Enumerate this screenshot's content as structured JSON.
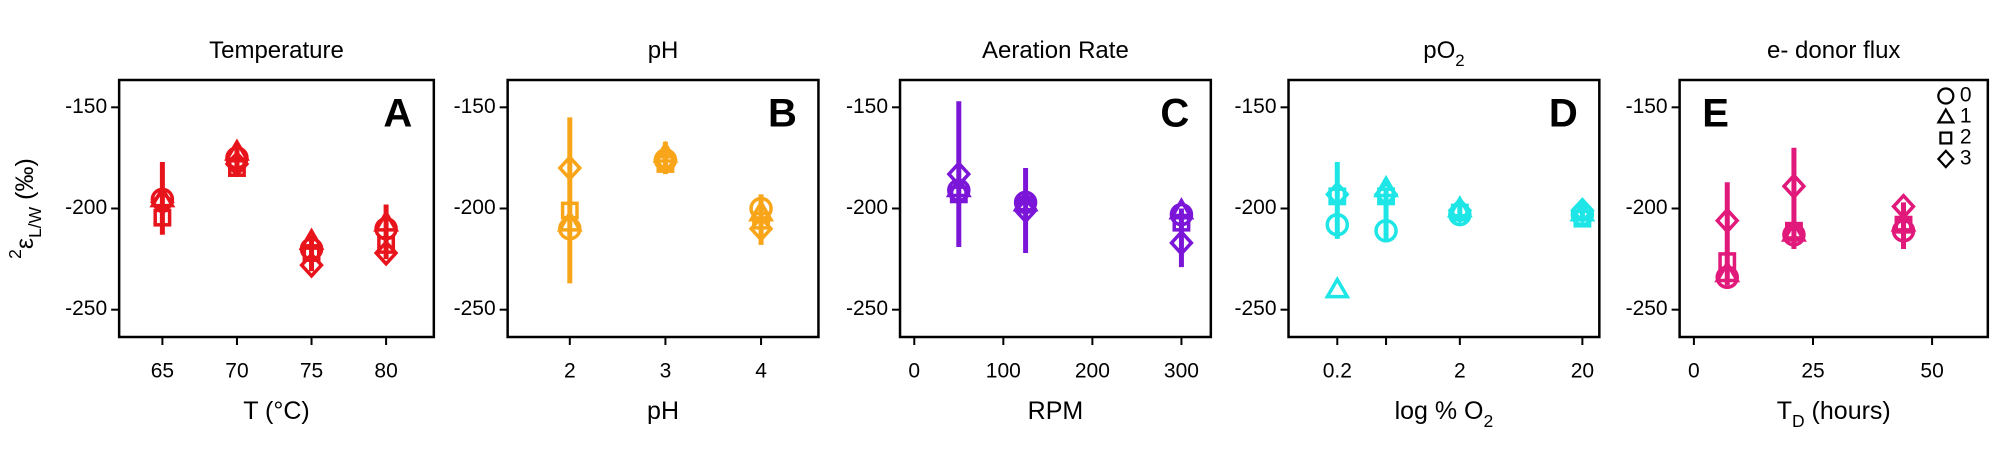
{
  "chart_data": [
    {
      "type": "scatter",
      "title": [
        {
          "t": "Temperature"
        }
      ],
      "xlabel": [
        {
          "t": "T (°C)"
        }
      ],
      "letter": "A",
      "color": "#e8141c",
      "ylabel": [
        {
          "t": "2",
          "s": "sup"
        },
        {
          "t": "ε"
        },
        {
          "t": "L/W",
          "s": "sub"
        },
        {
          "t": " (‰)"
        }
      ],
      "xlim": [
        62.1,
        83.2
      ],
      "xticks": [
        65,
        70,
        75,
        80
      ],
      "ylim": [
        -263.5,
        -136.5
      ],
      "yticks": [
        -250,
        -200,
        -150
      ],
      "x": [
        65,
        70,
        75,
        80
      ],
      "range_low": [
        -213,
        -183,
        -231,
        -225
      ],
      "range_high": [
        -177,
        -168,
        -213,
        -198
      ],
      "series": [
        {
          "name": "0",
          "marker": "circle",
          "values": [
            -195.5,
            -175,
            -220,
            -210
          ]
        },
        {
          "name": "1",
          "marker": "triangle",
          "values": [
            -195,
            -172,
            -216,
            -207
          ]
        },
        {
          "name": "2",
          "marker": "square",
          "values": [
            -204.5,
            -180,
            -222,
            -218
          ]
        },
        {
          "name": "3",
          "marker": "diamond",
          "values": [
            -197,
            -178,
            -228,
            -222
          ]
        }
      ]
    },
    {
      "type": "scatter",
      "title": [
        {
          "t": "pH"
        }
      ],
      "xlabel": [
        {
          "t": "pH"
        }
      ],
      "letter": "B",
      "color": "#f9a51a",
      "xlim": [
        1.35,
        4.6
      ],
      "xticks": [
        2,
        3,
        4
      ],
      "ylim": [
        -263.5,
        -136.5
      ],
      "yticks": [
        -250,
        -200,
        -150
      ],
      "x": [
        2,
        3,
        4
      ],
      "range_low": [
        -237,
        -183,
        -218
      ],
      "range_high": [
        -155,
        -167,
        -193
      ],
      "series": [
        {
          "name": "0",
          "marker": "circle",
          "values": [
            -210,
            -176,
            -200
          ]
        },
        {
          "name": "1",
          "marker": "triangle",
          "values": [
            -207,
            -173,
            -202
          ]
        },
        {
          "name": "2",
          "marker": "square",
          "values": [
            -201,
            -178,
            -206
          ]
        },
        {
          "name": "3",
          "marker": "diamond",
          "values": [
            -180,
            -176,
            -210
          ]
        }
      ]
    },
    {
      "type": "scatter",
      "title": [
        {
          "t": "Aeration Rate"
        }
      ],
      "xlabel": [
        {
          "t": "RPM"
        }
      ],
      "letter": "C",
      "color": "#7b16d8",
      "xlim": [
        -16,
        333
      ],
      "xticks": [
        0,
        100,
        200,
        300
      ],
      "ylim": [
        -263.5,
        -136.5
      ],
      "yticks": [
        -250,
        -200,
        -150
      ],
      "x": [
        50,
        125,
        300
      ],
      "range_low": [
        -219,
        -222,
        -229
      ],
      "range_high": [
        -147,
        -180,
        -200
      ],
      "series": [
        {
          "name": "0",
          "marker": "circle",
          "values": [
            -191,
            -197,
            -203
          ]
        },
        {
          "name": "1",
          "marker": "triangle",
          "values": [
            -190,
            -197,
            -201
          ]
        },
        {
          "name": "2",
          "marker": "square",
          "values": [
            -193,
            -198,
            -207
          ]
        },
        {
          "name": "3",
          "marker": "diamond",
          "values": [
            -183,
            -201,
            -217
          ]
        }
      ]
    },
    {
      "type": "scatter",
      "title": [
        {
          "t": "pO"
        },
        {
          "t": "2",
          "s": "sub"
        }
      ],
      "xlabel": [
        {
          "t": "log % O"
        },
        {
          "t": "2",
          "s": "sub"
        }
      ],
      "letter": "D",
      "color": "#1ee6e6",
      "xscale": "log",
      "xlim": [
        0.08,
        27.5
      ],
      "xticks": [
        {
          "value": 0.2,
          "label": "0.2"
        },
        2,
        20
      ],
      "minor_xticks": [
        0.5
      ],
      "ylim": [
        -263.5,
        -136.5
      ],
      "yticks": [
        -250,
        -200,
        -150
      ],
      "x": [
        0.2,
        0.5,
        2,
        20
      ],
      "range_low": [
        -215,
        -216,
        -205,
        -206
      ],
      "range_high": [
        -177,
        -190,
        -197,
        -198
      ],
      "series": [
        {
          "name": "0",
          "marker": "circle",
          "values": [
            -208,
            -211,
            -203,
            -203
          ]
        },
        {
          "name": "1",
          "marker": "triangle",
          "values": [
            -240,
            -190,
            -200,
            -202
          ]
        },
        {
          "name": "2",
          "marker": "square",
          "values": [
            -194,
            -194,
            -202,
            -205
          ]
        },
        {
          "name": "3",
          "marker": "diamond",
          "values": [
            -193,
            -193,
            -201,
            -201
          ]
        }
      ]
    },
    {
      "type": "scatter",
      "title": [
        {
          "t": "e- donor flux"
        }
      ],
      "xlabel": [
        {
          "t": "T"
        },
        {
          "t": "D",
          "s": "sub"
        },
        {
          "t": " (hours)"
        }
      ],
      "letter": "E",
      "color": "#e0197b",
      "legend": "top-right",
      "xlim": [
        -3,
        61.7
      ],
      "xticks": [
        0,
        25,
        50
      ],
      "ylim": [
        -263.5,
        -136.5
      ],
      "yticks": [
        -250,
        -200,
        -150
      ],
      "x": [
        7,
        21,
        44
      ],
      "range_low": [
        -238,
        -220,
        -220
      ],
      "range_high": [
        -187,
        -170,
        -197
      ],
      "series": [
        {
          "name": "0",
          "marker": "circle",
          "values": [
            -234,
            -213,
            -211
          ]
        },
        {
          "name": "1",
          "marker": "triangle",
          "values": [
            -232,
            -212,
            -207
          ]
        },
        {
          "name": "2",
          "marker": "square",
          "values": [
            -226,
            -211,
            -208
          ]
        },
        {
          "name": "3",
          "marker": "diamond",
          "values": [
            -206,
            -189,
            -199
          ]
        }
      ]
    }
  ]
}
